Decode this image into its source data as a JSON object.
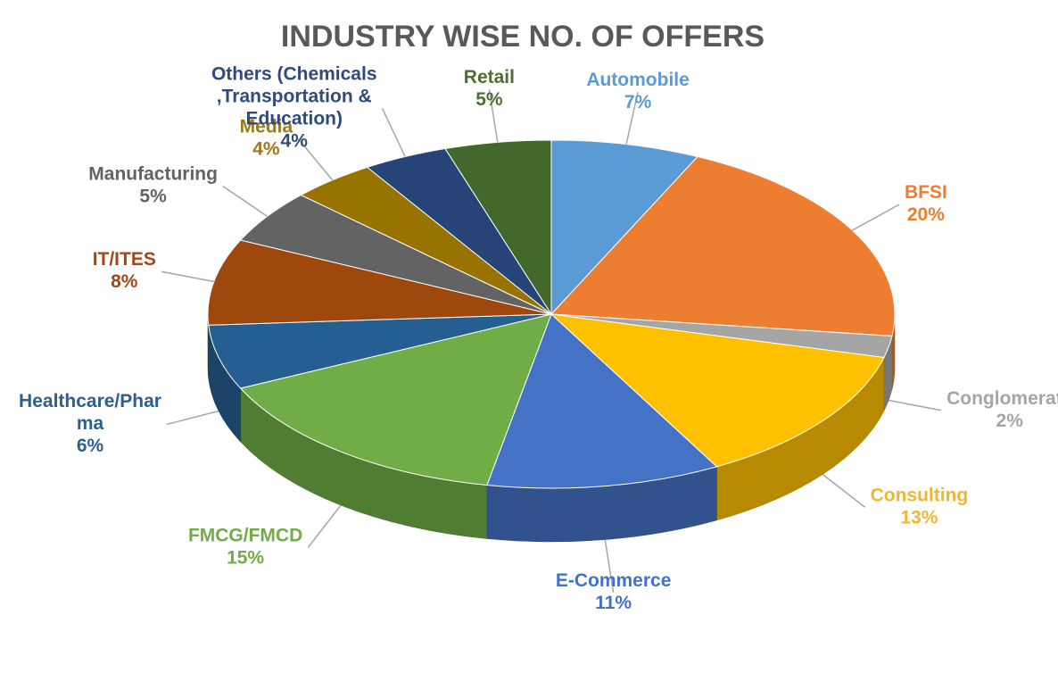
{
  "chart_data": {
    "type": "pie",
    "title": "INDUSTRY WISE NO. OF OFFERS",
    "slices": [
      {
        "label": "Automobile",
        "value": 7,
        "percent_label": "7%",
        "color": "#5B9BD5",
        "label_color": "#5B9BD5"
      },
      {
        "label": "BFSI",
        "value": 20,
        "percent_label": "20%",
        "color": "#ED7D31",
        "label_color": "#ED7D31"
      },
      {
        "label": "Conglomerate",
        "value": 2,
        "percent_label": "2%",
        "color": "#A5A5A5",
        "label_color": "#A5A5A5"
      },
      {
        "label": "Consulting",
        "value": 13,
        "percent_label": "13%",
        "color": "#FFC000",
        "label_color": "#F2B531"
      },
      {
        "label": "E-Commerce",
        "value": 11,
        "percent_label": "11%",
        "color": "#4472C4",
        "label_color": "#4472C4"
      },
      {
        "label": "FMCG/FMCD",
        "value": 15,
        "percent_label": "15%",
        "color": "#70AD47",
        "label_color": "#70AD47"
      },
      {
        "label": "Healthcare/Phar ma",
        "label_lines": [
          "Healthcare/Phar",
          "ma"
        ],
        "value": 6,
        "percent_label": "6%",
        "color": "#255E91",
        "label_color": "#2E5E8E"
      },
      {
        "label": "IT/ITES",
        "value": 8,
        "percent_label": "8%",
        "color": "#9E480E",
        "label_color": "#A0481A"
      },
      {
        "label": "Manufacturing",
        "value": 5,
        "percent_label": "5%",
        "color": "#636363",
        "label_color": "#636363"
      },
      {
        "label": "Media",
        "value": 4,
        "percent_label": "4%",
        "color": "#997300",
        "label_color": "#9B7A1A"
      },
      {
        "label": "Others (Chemicals ,Transportation & Education)",
        "label_lines": [
          "Others (Chemicals",
          ",Transportation &",
          "Education)"
        ],
        "value": 4,
        "percent_label": "4%",
        "color": "#264478",
        "label_color": "#2F4A7C"
      },
      {
        "label": "Retail",
        "value": 5,
        "percent_label": "5%",
        "color": "#43682B",
        "label_color": "#4A7030"
      }
    ],
    "legend": "none",
    "style": "3d-pie"
  }
}
